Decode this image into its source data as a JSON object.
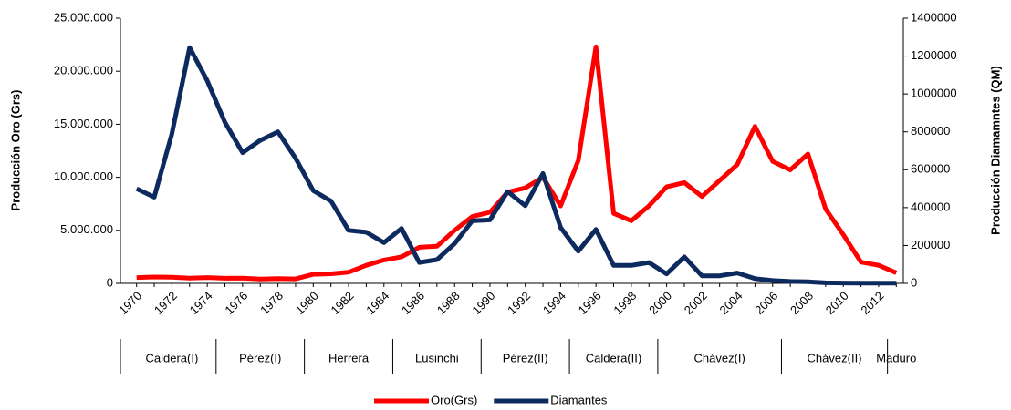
{
  "chart_data": {
    "type": "line",
    "y_label": "Producción Oro (Grs)",
    "y2_label": "Producción Diamamntes (QM)",
    "categories": [
      "1970",
      null,
      "1972",
      null,
      "1974",
      null,
      "1976",
      null,
      "1978",
      null,
      "1980",
      null,
      "1982",
      null,
      "1984",
      null,
      "1986",
      null,
      "1988",
      null,
      "1990",
      null,
      "1992",
      null,
      "1994",
      null,
      "1996",
      null,
      "1998",
      null,
      "2000",
      null,
      "2002",
      null,
      "2004",
      null,
      "2006",
      null,
      "2008",
      null,
      "2010",
      null,
      "2012",
      null
    ],
    "groups": [
      {
        "label": "Caldera(I)",
        "count": 5
      },
      {
        "label": "Pérez(I)",
        "count": 5
      },
      {
        "label": "Herrera",
        "count": 5
      },
      {
        "label": "Lusinchi",
        "count": 5
      },
      {
        "label": "Pérez(II)",
        "count": 5
      },
      {
        "label": "Caldera(II)",
        "count": 5
      },
      {
        "label": "Chávez(I)",
        "count": 7
      },
      {
        "label": "Chávez(II)",
        "count": 6
      },
      {
        "label": "Maduro",
        "count": 1
      }
    ],
    "series": [
      {
        "name": "Oro(Grs)",
        "color": "#ff0000",
        "axis": "y",
        "values": [
          550000,
          600000,
          580000,
          500000,
          550000,
          480000,
          500000,
          400000,
          450000,
          420000,
          850000,
          900000,
          1050000,
          1700000,
          2200000,
          2500000,
          3400000,
          3500000,
          5000000,
          6300000,
          6700000,
          8600000,
          9000000,
          10000000,
          7300000,
          11600000,
          22300000,
          6600000,
          5900000,
          7300000,
          9100000,
          9500000,
          8200000,
          9700000,
          11200000,
          14800000,
          11500000,
          10700000,
          12200000,
          7000000,
          4600000,
          2000000,
          1700000,
          1000000
        ]
      },
      {
        "name": "Diamantes",
        "color": "#0d2a5e",
        "axis": "y2",
        "values": [
          500000,
          455000,
          790000,
          1245000,
          1070000,
          850000,
          690000,
          755000,
          800000,
          660000,
          490000,
          435000,
          280000,
          270000,
          215000,
          290000,
          110000,
          125000,
          210000,
          330000,
          335000,
          485000,
          410000,
          580000,
          295000,
          170000,
          285000,
          95000,
          95000,
          110000,
          50000,
          140000,
          40000,
          40000,
          55000,
          25000,
          15000,
          10000,
          8000,
          3000,
          2000,
          1000,
          1000,
          1000
        ]
      }
    ],
    "ylim": [
      0,
      25000000
    ],
    "yticks": [
      0,
      {
        "value": 5000000,
        "label": "5.000.000"
      },
      {
        "value": 10000000,
        "label": "10.000.000"
      },
      {
        "value": 15000000,
        "label": "15.000.000"
      },
      {
        "value": 20000000,
        "label": "20.000.000"
      },
      {
        "value": 25000000,
        "label": "25.000.000"
      }
    ],
    "y2lim": [
      0,
      1400000
    ],
    "y2ticks": [
      0,
      200000,
      400000,
      600000,
      800000,
      1000000,
      1200000,
      1400000
    ],
    "legend": "bottom"
  }
}
